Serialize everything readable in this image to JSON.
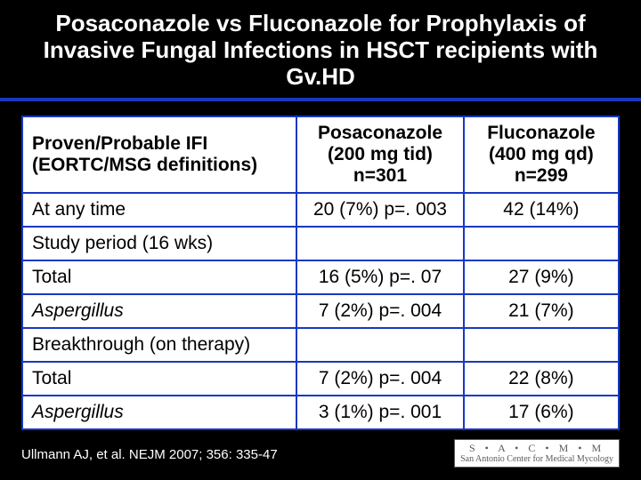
{
  "title": "Posaconazole vs Fluconazole for Prophylaxis of Invasive Fungal Infections in HSCT recipients with Gv.HD",
  "colors": {
    "background": "#000000",
    "table_border": "#1838c0",
    "cell_bg": "#ffffff",
    "title_text": "#ffffff",
    "body_text": "#000000"
  },
  "table": {
    "headers": {
      "c1": "Proven/Probable IFI (EORTC/MSG definitions)",
      "c2": "Posaconazole (200 mg tid) n=301",
      "c3": "Fluconazole (400 mg qd) n=299"
    },
    "rows": [
      {
        "c1": "At any time",
        "c2": "20 (7%) p=. 003",
        "c3": "42 (14%)",
        "italic": false
      },
      {
        "c1": "Study period (16 wks)",
        "c2": "",
        "c3": "",
        "italic": false
      },
      {
        "c1": "Total",
        "c2": "16 (5%) p=. 07",
        "c3": "27 (9%)",
        "italic": false
      },
      {
        "c1": "Aspergillus",
        "c2": "7 (2%) p=. 004",
        "c3": "21 (7%)",
        "italic": true
      },
      {
        "c1": "Breakthrough (on therapy)",
        "c2": "",
        "c3": "",
        "italic": false
      },
      {
        "c1": "Total",
        "c2": "7 (2%) p=. 004",
        "c3": "22 (8%)",
        "italic": false
      },
      {
        "c1": "Aspergillus",
        "c2": "3 (1%) p=. 001",
        "c3": "17 (6%)",
        "italic": true
      }
    ]
  },
  "citation": "Ullmann AJ, et al. NEJM 2007; 356: 335-47",
  "logo": {
    "top": "S • A • C • M • M",
    "bottom": "San Antonio Center for Medical Mycology"
  },
  "fontsize": {
    "title": 26,
    "cell": 21,
    "citation": 15
  }
}
